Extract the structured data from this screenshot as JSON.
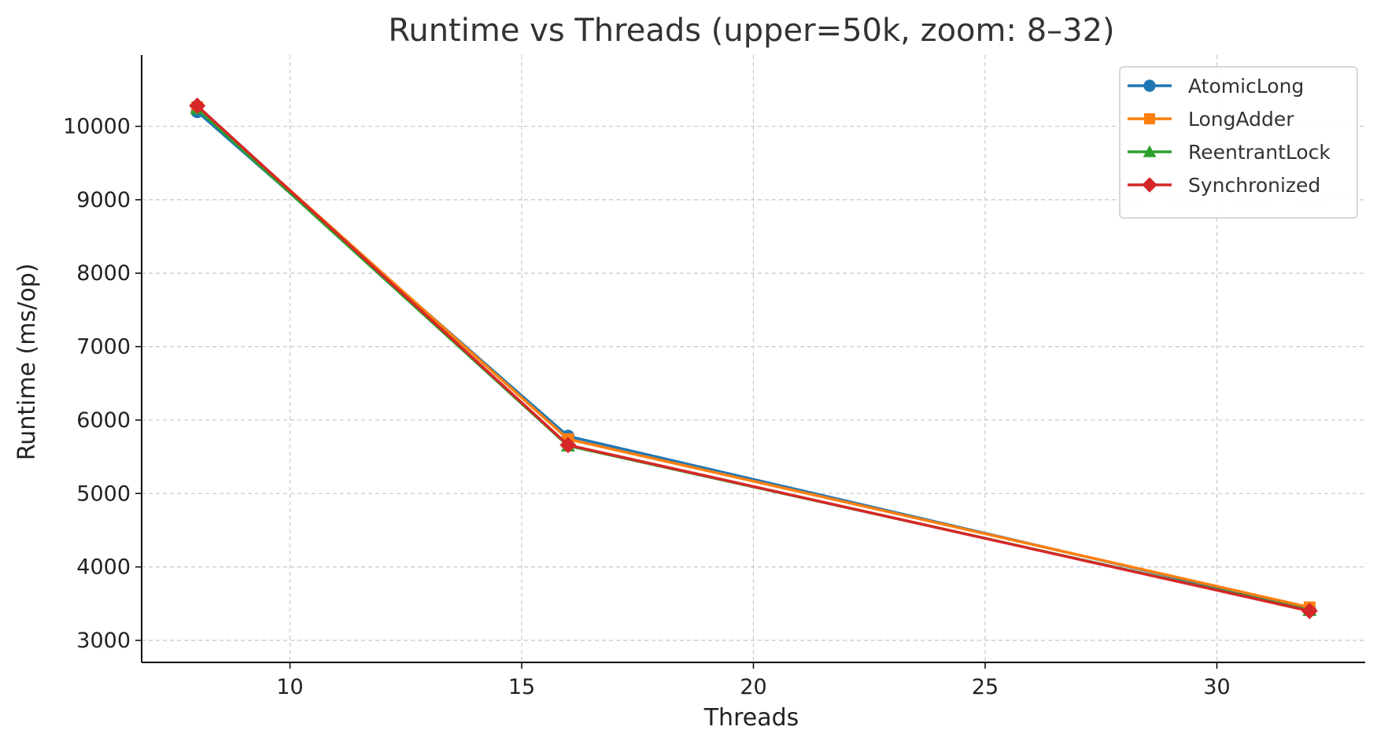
{
  "chart_data": {
    "type": "line",
    "title": "Runtime vs Threads (upper=50k, zoom: 8–32)",
    "xlabel": "Threads",
    "ylabel": "Runtime (ms/op)",
    "xlim": [
      6.8,
      33.2
    ],
    "ylim": [
      2700,
      10970
    ],
    "xticks": [
      10,
      15,
      20,
      25,
      30
    ],
    "yticks": [
      3000,
      4000,
      5000,
      6000,
      7000,
      8000,
      9000,
      10000
    ],
    "grid": true,
    "legend_position": "top-right",
    "x": [
      8,
      16,
      32
    ],
    "series": [
      {
        "name": "AtomicLong",
        "values": [
          10200,
          5780,
          3430
        ],
        "color": "#1f77b4",
        "marker": "circle"
      },
      {
        "name": "LongAdder",
        "values": [
          10260,
          5740,
          3450
        ],
        "color": "#ff7f0e",
        "marker": "square"
      },
      {
        "name": "ReentrantLock",
        "values": [
          10240,
          5650,
          3410
        ],
        "color": "#2ca02c",
        "marker": "triangle"
      },
      {
        "name": "Synchronized",
        "values": [
          10280,
          5660,
          3400
        ],
        "color": "#d62728",
        "marker": "diamond"
      }
    ]
  }
}
